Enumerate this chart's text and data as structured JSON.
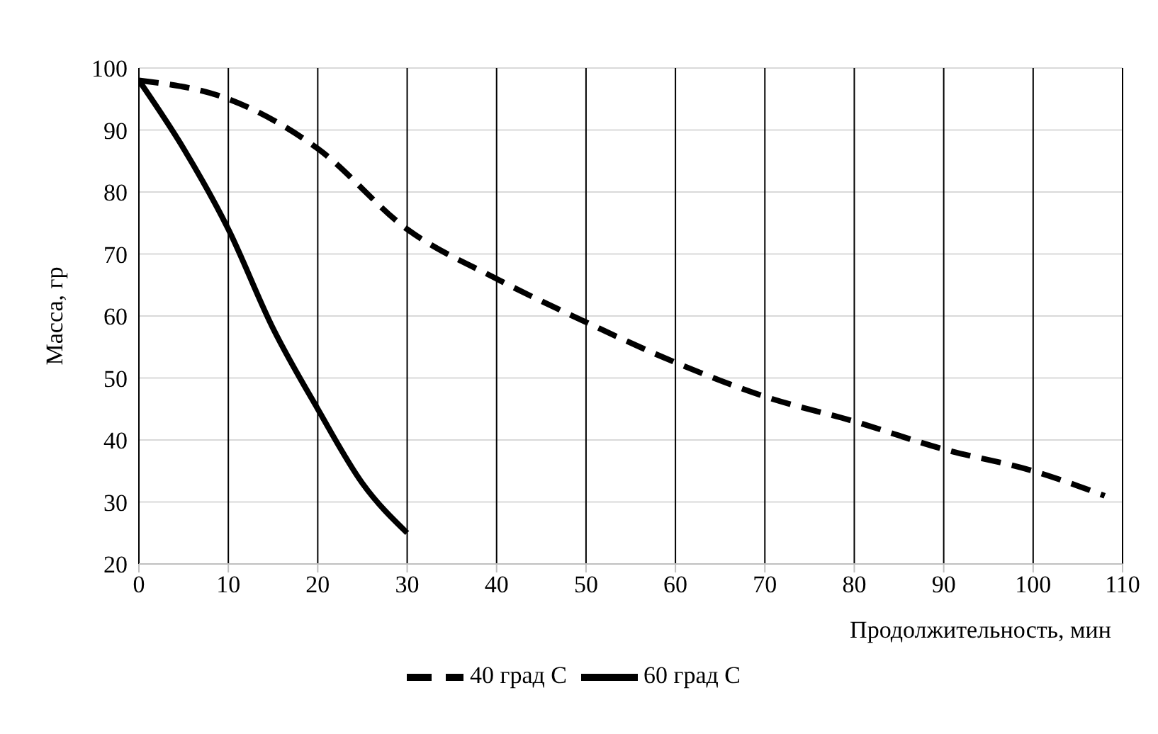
{
  "chart_data": {
    "type": "line",
    "xlabel": "Продолжительность, мин",
    "ylabel": "Масса, гр",
    "xlim": [
      0,
      110
    ],
    "xticks": [
      0,
      10,
      20,
      30,
      40,
      50,
      60,
      70,
      80,
      90,
      100,
      110
    ],
    "ylim": [
      20,
      100
    ],
    "yticks": [
      20,
      30,
      40,
      50,
      60,
      70,
      80,
      90,
      100
    ],
    "grid": true,
    "legend": "bottom",
    "marker": "none",
    "series": [
      {
        "name": "40 град С",
        "color": "#000000",
        "line_style": "dashed",
        "x": [
          0,
          10,
          20,
          30,
          40,
          50,
          60,
          70,
          80,
          90,
          100,
          108
        ],
        "values": [
          98,
          95,
          87,
          74,
          66,
          59,
          52.5,
          47,
          43,
          38.5,
          35,
          31
        ]
      },
      {
        "name": "60 град С",
        "color": "#000000",
        "line_style": "solid",
        "x": [
          0,
          5,
          10,
          15,
          20,
          25,
          30
        ],
        "values": [
          98,
          87,
          74,
          58,
          45,
          33,
          25
        ]
      }
    ]
  }
}
